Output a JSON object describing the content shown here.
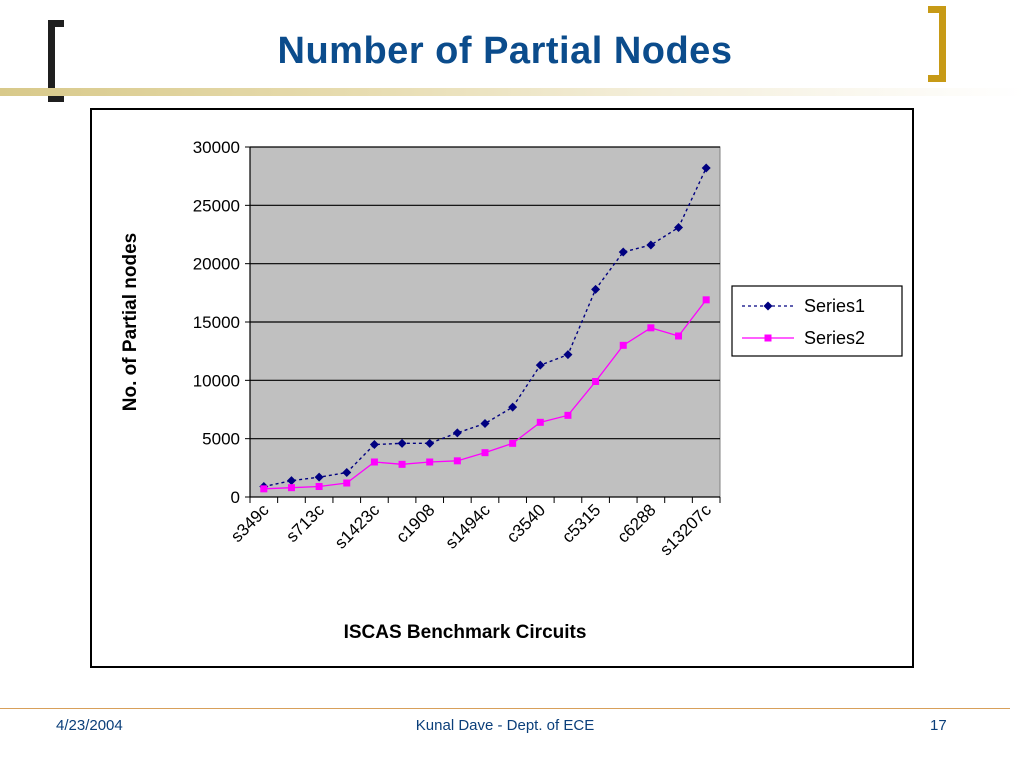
{
  "slide": {
    "title": "Number of Partial Nodes",
    "footer_date": "4/23/2004",
    "footer_center": "Kunal Dave - Dept. of ECE",
    "page_number": "17"
  },
  "colors": {
    "title": "#0b4c8c",
    "series1": "#000080",
    "series2": "#ff00ff",
    "plot_bg": "#c0c0c0",
    "bracket_left": "#1f1f1f",
    "bracket_right": "#c79a16"
  },
  "chart_data": {
    "type": "line",
    "xlabel": "ISCAS Benchmark Circuits",
    "ylabel": "No. of Partial nodes",
    "ylim": [
      0,
      30000
    ],
    "yticks": [
      0,
      5000,
      10000,
      15000,
      20000,
      25000,
      30000
    ],
    "grid": true,
    "legend_position": "right",
    "categories": [
      "s349c",
      "",
      "s713c",
      "",
      "s1423c",
      "",
      "c1908",
      "",
      "s1494c",
      "",
      "c3540",
      "",
      "c5315",
      "",
      "c6288",
      "",
      "s13207c"
    ],
    "series": [
      {
        "name": "Series1",
        "line_style": "dotted",
        "marker": "diamond",
        "values": [
          900,
          1400,
          1700,
          2100,
          4500,
          4600,
          4600,
          5500,
          6300,
          7700,
          11300,
          12200,
          17800,
          21000,
          21600,
          23100,
          28200
        ]
      },
      {
        "name": "Series2",
        "line_style": "solid",
        "marker": "square",
        "values": [
          700,
          800,
          900,
          1200,
          3000,
          2800,
          3000,
          3100,
          3800,
          4600,
          6400,
          7000,
          9900,
          13000,
          14500,
          13800,
          16900
        ]
      }
    ]
  }
}
